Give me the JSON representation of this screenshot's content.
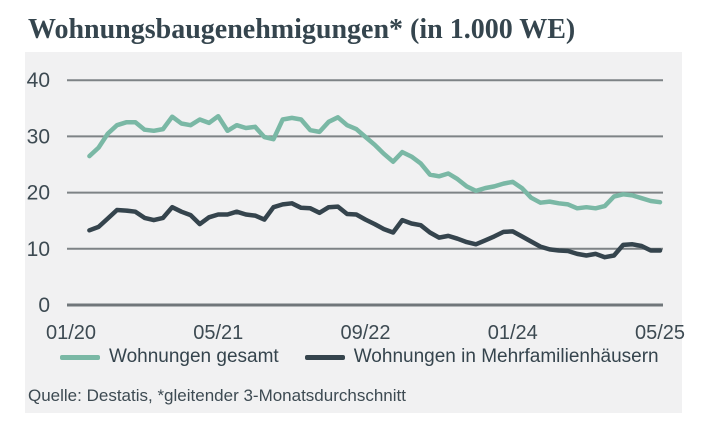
{
  "title": "Wohnungsbaugenehmigungen* (in 1.000 WE)",
  "source": "Quelle: Destatis, *gleitender 3-Monatsdurchschnitt",
  "colors": {
    "panel_background": "#f1f1f2",
    "gridline": "#7e8386",
    "zero_axis": "#70767a",
    "text": "#3d4a52",
    "title_text": "#35454e",
    "series_total": "#7ab8a5",
    "series_mfh": "#35444d"
  },
  "legend": {
    "items": [
      {
        "label": "Wohnungen gesamt",
        "color": "#7ab8a5"
      },
      {
        "label": "Wohnungen in Mehrfamilienhäusern",
        "color": "#35444d"
      }
    ]
  },
  "chart_data": {
    "type": "line",
    "title": "Wohnungsbaugenehmigungen* (in 1.000 WE)",
    "xlabel": "",
    "ylabel": "",
    "ylim": [
      0,
      40
    ],
    "y_ticks": [
      0,
      10,
      20,
      30,
      40
    ],
    "x_tick_labels": [
      "01/20",
      "05/21",
      "09/22",
      "01/24",
      "05/25"
    ],
    "grid": true,
    "legend_position": "bottom",
    "note": "gleitender 3-Monatsdurchschnitt, in 1.000 Wohneinheiten",
    "x": [
      "03/20",
      "04/20",
      "05/20",
      "06/20",
      "07/20",
      "08/20",
      "09/20",
      "10/20",
      "11/20",
      "12/20",
      "01/21",
      "02/21",
      "03/21",
      "04/21",
      "05/21",
      "06/21",
      "07/21",
      "08/21",
      "09/21",
      "10/21",
      "11/21",
      "12/21",
      "01/22",
      "02/22",
      "03/22",
      "04/22",
      "05/22",
      "06/22",
      "07/22",
      "08/22",
      "09/22",
      "10/22",
      "11/22",
      "12/22",
      "01/23",
      "02/23",
      "03/23",
      "04/23",
      "05/23",
      "06/23",
      "07/23",
      "08/23",
      "09/23",
      "10/23",
      "11/23",
      "12/23",
      "01/24",
      "02/24",
      "03/24",
      "04/24",
      "05/24",
      "06/24",
      "07/24",
      "08/24",
      "09/24",
      "10/24",
      "11/24",
      "12/24",
      "01/25",
      "02/25",
      "03/25",
      "04/25",
      "05/25"
    ],
    "series": [
      {
        "name": "Wohnungen gesamt",
        "color": "#7ab8a5",
        "values": [
          26.5,
          28.0,
          30.5,
          32.0,
          32.5,
          32.5,
          31.2,
          31.0,
          31.3,
          33.5,
          32.3,
          32.0,
          33.0,
          32.4,
          33.6,
          31.0,
          32.0,
          31.5,
          31.7,
          29.9,
          29.5,
          33.0,
          33.3,
          33.0,
          31.1,
          30.8,
          32.6,
          33.4,
          32.0,
          31.3,
          29.9,
          28.5,
          26.9,
          25.5,
          27.2,
          26.4,
          25.2,
          23.2,
          22.9,
          23.4,
          22.4,
          21.1,
          20.3,
          20.8,
          21.1,
          21.6,
          21.9,
          20.8,
          19.1,
          18.2,
          18.4,
          18.1,
          17.9,
          17.2,
          17.4,
          17.2,
          17.6,
          19.3,
          19.7,
          19.5,
          19.0,
          18.5,
          18.3
        ]
      },
      {
        "name": "Wohnungen in Mehrfamilienhäusern",
        "color": "#35444d",
        "values": [
          13.3,
          13.9,
          15.4,
          16.9,
          16.8,
          16.6,
          15.5,
          15.1,
          15.5,
          17.4,
          16.6,
          16.0,
          14.4,
          15.6,
          16.1,
          16.1,
          16.6,
          16.1,
          15.9,
          15.2,
          17.4,
          17.9,
          18.1,
          17.3,
          17.2,
          16.4,
          17.4,
          17.5,
          16.2,
          16.1,
          15.2,
          14.4,
          13.5,
          12.9,
          15.1,
          14.5,
          14.2,
          12.9,
          12.0,
          12.3,
          11.8,
          11.2,
          10.8,
          11.5,
          12.2,
          13.0,
          13.1,
          12.2,
          11.3,
          10.4,
          9.9,
          9.7,
          9.6,
          9.1,
          8.8,
          9.1,
          8.5,
          8.8,
          10.7,
          10.8,
          10.5,
          9.7,
          9.7
        ]
      }
    ]
  }
}
